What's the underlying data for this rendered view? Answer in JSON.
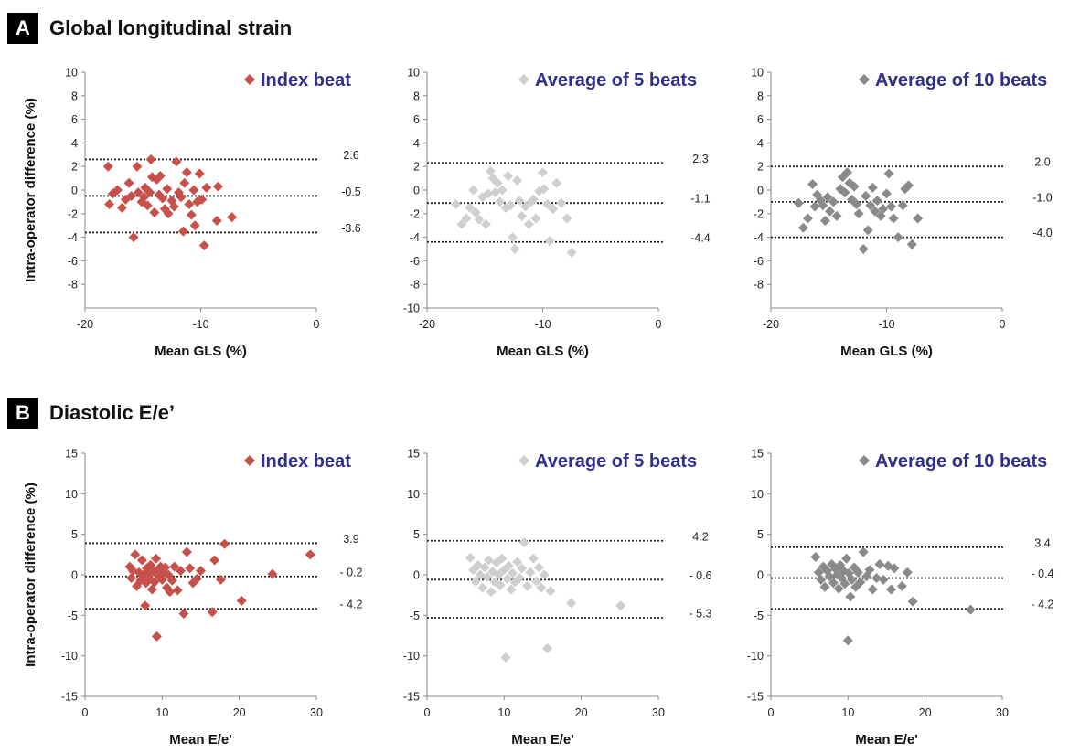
{
  "sections": [
    {
      "letter": "A",
      "title": "Global longitudinal strain"
    },
    {
      "letter": "B",
      "title": "Diastolic E/e’"
    }
  ],
  "chart_data": [
    {
      "type": "scatter",
      "panel": "A",
      "legend": "Index beat",
      "color": "#c8504a",
      "ylabel": "Intra-operator difference (%)",
      "xlabel": "Mean GLS (%)",
      "xlim": [
        -20,
        0
      ],
      "ylim": [
        -10,
        10
      ],
      "xticks": [
        -20,
        -10,
        0
      ],
      "yticks": [
        -8,
        -6,
        -4,
        -2,
        0,
        2,
        4,
        6,
        8,
        10
      ],
      "reference_lines": [
        {
          "value": 2.6,
          "label": "2.6"
        },
        {
          "value": -0.5,
          "label": "-0.5"
        },
        {
          "value": -3.6,
          "label": "-3.6"
        }
      ],
      "points": [
        [
          -18,
          2
        ],
        [
          -17.6,
          -0.3
        ],
        [
          -17.2,
          0
        ],
        [
          -17.9,
          -1.2
        ],
        [
          -16.8,
          -1.5
        ],
        [
          -16.5,
          -0.8
        ],
        [
          -16.2,
          0.6
        ],
        [
          -16,
          -0.5
        ],
        [
          -15.8,
          -4
        ],
        [
          -15.5,
          2
        ],
        [
          -15.4,
          -0.2
        ],
        [
          -15.1,
          -1
        ],
        [
          -14.9,
          -0.6
        ],
        [
          -14.8,
          0.2
        ],
        [
          -14.6,
          -1.3
        ],
        [
          -14.4,
          -0.2
        ],
        [
          -14.3,
          2.6
        ],
        [
          -14.2,
          1.1
        ],
        [
          -14,
          -1.9
        ],
        [
          -13.8,
          0.9
        ],
        [
          -13.6,
          -0.4
        ],
        [
          -13.5,
          1.2
        ],
        [
          -13.3,
          -0.7
        ],
        [
          -13.1,
          -1.6
        ],
        [
          -12.9,
          0.1
        ],
        [
          -12.8,
          -2
        ],
        [
          -12.5,
          -0.9
        ],
        [
          -12.3,
          -1.4
        ],
        [
          -12.1,
          2.4
        ],
        [
          -11.9,
          -0.2
        ],
        [
          -11.7,
          -0.6
        ],
        [
          -11.5,
          -3.5
        ],
        [
          -11.4,
          0.6
        ],
        [
          -11.2,
          1.5
        ],
        [
          -11,
          -1.2
        ],
        [
          -10.8,
          -2.1
        ],
        [
          -10.6,
          0
        ],
        [
          -10.5,
          -3
        ],
        [
          -10.3,
          -1
        ],
        [
          -10.1,
          1.4
        ],
        [
          -9.9,
          -0.8
        ],
        [
          -9.7,
          -4.7
        ],
        [
          -9.5,
          0.2
        ],
        [
          -8.6,
          -2.6
        ],
        [
          -8.5,
          0.3
        ],
        [
          -7.3,
          -2.3
        ]
      ]
    },
    {
      "type": "scatter",
      "panel": "A",
      "legend": "Average of 5 beats",
      "color": "#cfcfcf",
      "xlabel": "Mean GLS (%)",
      "xlim": [
        -20,
        0
      ],
      "ylim": [
        -10,
        10
      ],
      "xticks": [
        -20,
        -10,
        0
      ],
      "yticks": [
        -10,
        -8,
        -6,
        -4,
        -2,
        0,
        2,
        4,
        6,
        8,
        10
      ],
      "reference_lines": [
        {
          "value": 2.3,
          "label": "2.3"
        },
        {
          "value": -1.1,
          "label": "-1.1"
        },
        {
          "value": -4.4,
          "label": "-4.4"
        }
      ],
      "points": [
        [
          -17.5,
          -1.2
        ],
        [
          -17,
          -2.9
        ],
        [
          -16.6,
          -2.4
        ],
        [
          -16.3,
          -1.5
        ],
        [
          -16,
          0
        ],
        [
          -15.8,
          -1.9
        ],
        [
          -15.5,
          -2.5
        ],
        [
          -15.2,
          -0.6
        ],
        [
          -14.9,
          -2.9
        ],
        [
          -14.7,
          -0.3
        ],
        [
          -14.5,
          1.6
        ],
        [
          -14.3,
          1
        ],
        [
          -14.1,
          -0.2
        ],
        [
          -13.9,
          0.6
        ],
        [
          -13.7,
          -1
        ],
        [
          -13.5,
          0
        ],
        [
          -13.2,
          -1.5
        ],
        [
          -13,
          1.2
        ],
        [
          -12.8,
          -1.3
        ],
        [
          -12.6,
          -4
        ],
        [
          -12.4,
          -5
        ],
        [
          -12.2,
          0.8
        ],
        [
          -12,
          -0.9
        ],
        [
          -11.8,
          -2.2
        ],
        [
          -11.5,
          -1.4
        ],
        [
          -11.2,
          -2.9
        ],
        [
          -11,
          -1
        ],
        [
          -10.8,
          -0.8
        ],
        [
          -10.6,
          -2.4
        ],
        [
          -10.3,
          -0.1
        ],
        [
          -10,
          1.5
        ],
        [
          -9.9,
          0.1
        ],
        [
          -9.6,
          -1.2
        ],
        [
          -9.4,
          -4.3
        ],
        [
          -9.1,
          -1.6
        ],
        [
          -8.8,
          0.6
        ],
        [
          -8.4,
          -1.1
        ],
        [
          -7.9,
          -2.4
        ],
        [
          -7.5,
          -5.3
        ]
      ]
    },
    {
      "type": "scatter",
      "panel": "A",
      "legend": "Average of 10 beats",
      "color": "#8a8a8a",
      "xlabel": "Mean GLS (%)",
      "xlim": [
        -20,
        0
      ],
      "ylim": [
        -10,
        10
      ],
      "xticks": [
        -20,
        -10,
        0
      ],
      "yticks": [
        -8,
        -6,
        -4,
        -2,
        0,
        2,
        4,
        6,
        8,
        10
      ],
      "reference_lines": [
        {
          "value": 2.0,
          "label": "2.0"
        },
        {
          "value": -1.0,
          "label": "-1.0"
        },
        {
          "value": -4.0,
          "label": "-4.0"
        }
      ],
      "points": [
        [
          -17.6,
          -1.1
        ],
        [
          -17.2,
          -3.2
        ],
        [
          -16.8,
          -2.4
        ],
        [
          -16.4,
          0.5
        ],
        [
          -16.2,
          -1.4
        ],
        [
          -16,
          -0.4
        ],
        [
          -15.7,
          -0.9
        ],
        [
          -15.5,
          -1.3
        ],
        [
          -15.3,
          -2.6
        ],
        [
          -15.1,
          -0.6
        ],
        [
          -14.9,
          -1.8
        ],
        [
          -14.6,
          -1
        ],
        [
          -14.3,
          -2.2
        ],
        [
          -14,
          0.1
        ],
        [
          -13.8,
          1.1
        ],
        [
          -13.6,
          -0.2
        ],
        [
          -13.4,
          1.5
        ],
        [
          -13.2,
          0.6
        ],
        [
          -13,
          -0.8
        ],
        [
          -12.8,
          0.3
        ],
        [
          -12.6,
          -1.2
        ],
        [
          -12.4,
          -2
        ],
        [
          -12,
          -5
        ],
        [
          -11.8,
          -0.5
        ],
        [
          -11.6,
          -3.4
        ],
        [
          -11.4,
          -1.3
        ],
        [
          -11.2,
          0.2
        ],
        [
          -11,
          -1.8
        ],
        [
          -10.8,
          -0.9
        ],
        [
          -10.5,
          -2.2
        ],
        [
          -10.3,
          -1.6
        ],
        [
          -10,
          -0.3
        ],
        [
          -9.8,
          1.4
        ],
        [
          -9.6,
          -1.4
        ],
        [
          -9.4,
          -2.4
        ],
        [
          -9,
          -4
        ],
        [
          -8.6,
          -1.3
        ],
        [
          -8.4,
          0.1
        ],
        [
          -8.1,
          0.4
        ],
        [
          -7.8,
          -4.6
        ],
        [
          -7.3,
          -2.4
        ]
      ]
    },
    {
      "type": "scatter",
      "panel": "B",
      "legend": "Index beat",
      "color": "#c8504a",
      "ylabel": "Intra-operator difference (%)",
      "xlabel": "Mean E/e'",
      "xlim": [
        0,
        30
      ],
      "ylim": [
        -15,
        15
      ],
      "xticks": [
        0,
        10,
        20,
        30
      ],
      "yticks": [
        -15,
        -10,
        -5,
        0,
        5,
        10,
        15
      ],
      "reference_lines": [
        {
          "value": 3.9,
          "label": "3.9"
        },
        {
          "value": -0.2,
          "label": "- 0.2"
        },
        {
          "value": -4.2,
          "label": "- 4.2"
        }
      ],
      "points": [
        [
          5.8,
          1
        ],
        [
          6,
          -0.4
        ],
        [
          6.2,
          0.5
        ],
        [
          6.5,
          2.5
        ],
        [
          6.7,
          -1.4
        ],
        [
          7,
          0.3
        ],
        [
          7.2,
          -0.7
        ],
        [
          7.4,
          1.8
        ],
        [
          7.6,
          0
        ],
        [
          7.8,
          -3.8
        ],
        [
          7.9,
          -1
        ],
        [
          8,
          0.8
        ],
        [
          8.2,
          0.2
        ],
        [
          8.4,
          -0.5
        ],
        [
          8.5,
          1.2
        ],
        [
          8.7,
          -1.8
        ],
        [
          8.9,
          0.4
        ],
        [
          9,
          -0.9
        ],
        [
          9.2,
          2
        ],
        [
          9.3,
          -7.6
        ],
        [
          9.4,
          0.6
        ],
        [
          9.6,
          -0.2
        ],
        [
          9.8,
          1
        ],
        [
          10,
          -0.6
        ],
        [
          10.2,
          0.2
        ],
        [
          10.4,
          0.9
        ],
        [
          10.6,
          -1.6
        ],
        [
          10.8,
          0
        ],
        [
          11,
          -2.1
        ],
        [
          11.3,
          -0.7
        ],
        [
          11.6,
          1
        ],
        [
          12,
          -1.9
        ],
        [
          12.4,
          0.5
        ],
        [
          12.8,
          -4.8
        ],
        [
          13.2,
          2.8
        ],
        [
          13.6,
          0.8
        ],
        [
          14,
          -1
        ],
        [
          14.5,
          -0.5
        ],
        [
          15,
          0.5
        ],
        [
          16.5,
          -4.6
        ],
        [
          16.8,
          1.8
        ],
        [
          17.6,
          -0.6
        ],
        [
          18.1,
          3.8
        ],
        [
          20.3,
          -3.2
        ],
        [
          24.3,
          0.1
        ],
        [
          29.2,
          2.5
        ]
      ]
    },
    {
      "type": "scatter",
      "panel": "B",
      "legend": "Average of 5 beats",
      "color": "#cfcfcf",
      "xlabel": "Mean E/e'",
      "xlim": [
        0,
        30
      ],
      "ylim": [
        -15,
        15
      ],
      "xticks": [
        0,
        10,
        20,
        30
      ],
      "yticks": [
        -15,
        -10,
        -5,
        0,
        5,
        10,
        15
      ],
      "reference_lines": [
        {
          "value": 4.2,
          "label": "4.2"
        },
        {
          "value": -0.6,
          "label": "- 0.6"
        },
        {
          "value": -5.3,
          "label": "- 5.3"
        }
      ],
      "points": [
        [
          5.6,
          2.1
        ],
        [
          6,
          0.6
        ],
        [
          6.3,
          -0.8
        ],
        [
          6.6,
          1.2
        ],
        [
          6.9,
          0
        ],
        [
          7.2,
          -1.6
        ],
        [
          7.5,
          0.9
        ],
        [
          7.8,
          -0.3
        ],
        [
          8,
          1.8
        ],
        [
          8.3,
          -2.1
        ],
        [
          8.5,
          0.4
        ],
        [
          8.8,
          -0.9
        ],
        [
          9,
          1.5
        ],
        [
          9.3,
          0
        ],
        [
          9.5,
          -1.3
        ],
        [
          9.7,
          2
        ],
        [
          10,
          0.6
        ],
        [
          10.2,
          -10.2
        ],
        [
          10.4,
          -0.5
        ],
        [
          10.6,
          1.1
        ],
        [
          10.9,
          -1.8
        ],
        [
          11.1,
          0.2
        ],
        [
          11.4,
          -0.9
        ],
        [
          11.7,
          1.6
        ],
        [
          12,
          -0.4
        ],
        [
          12.3,
          0.8
        ],
        [
          12.6,
          4
        ],
        [
          13,
          -1.4
        ],
        [
          13.4,
          0.3
        ],
        [
          13.8,
          2
        ],
        [
          14.2,
          -0.8
        ],
        [
          14.5,
          0.9
        ],
        [
          14.8,
          -1.6
        ],
        [
          15.2,
          0
        ],
        [
          15.6,
          -9.1
        ],
        [
          16,
          -2
        ],
        [
          18.7,
          -3.5
        ],
        [
          25.1,
          -3.8
        ]
      ]
    },
    {
      "type": "scatter",
      "panel": "B",
      "legend": "Average of 10 beats",
      "color": "#8a8a8a",
      "xlabel": "Mean E/e'",
      "xlim": [
        0,
        30
      ],
      "ylim": [
        -15,
        15
      ],
      "xticks": [
        0,
        10,
        20,
        30
      ],
      "yticks": [
        -15,
        -10,
        -5,
        0,
        5,
        10,
        15
      ],
      "reference_lines": [
        {
          "value": 3.4,
          "label": "3.4"
        },
        {
          "value": -0.4,
          "label": "- 0.4"
        },
        {
          "value": -4.2,
          "label": "- 4.2"
        }
      ],
      "points": [
        [
          5.8,
          2.2
        ],
        [
          6.2,
          0.3
        ],
        [
          6.5,
          -0.6
        ],
        [
          6.8,
          1
        ],
        [
          7,
          -1.5
        ],
        [
          7.3,
          0.5
        ],
        [
          7.6,
          -0.2
        ],
        [
          7.9,
          1.3
        ],
        [
          8.1,
          -1
        ],
        [
          8.4,
          0.7
        ],
        [
          8.6,
          0
        ],
        [
          8.8,
          -1.7
        ],
        [
          9,
          1.2
        ],
        [
          9.2,
          -0.4
        ],
        [
          9.4,
          0.5
        ],
        [
          9.6,
          -1.1
        ],
        [
          9.8,
          2
        ],
        [
          10,
          -8.1
        ],
        [
          10.1,
          0.2
        ],
        [
          10.3,
          -2.7
        ],
        [
          10.5,
          -0.6
        ],
        [
          10.8,
          0.9
        ],
        [
          11,
          -1.5
        ],
        [
          11.3,
          0.3
        ],
        [
          11.6,
          -0.9
        ],
        [
          12,
          2.8
        ],
        [
          12.4,
          -0.2
        ],
        [
          12.8,
          0.6
        ],
        [
          13.2,
          -1.8
        ],
        [
          13.7,
          -0.4
        ],
        [
          14.1,
          1.3
        ],
        [
          14.6,
          -0.6
        ],
        [
          15.2,
          1.1
        ],
        [
          15.6,
          -1.8
        ],
        [
          16,
          0.8
        ],
        [
          17,
          -1.4
        ],
        [
          17.7,
          0.3
        ],
        [
          18.4,
          -3.3
        ],
        [
          25.9,
          -4.3
        ]
      ]
    }
  ]
}
